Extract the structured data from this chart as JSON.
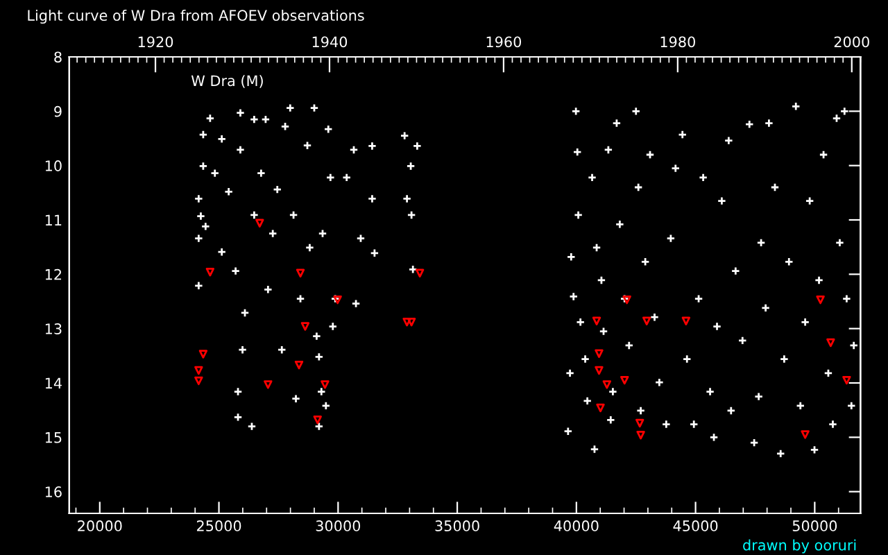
{
  "chart_data": {
    "type": "scatter",
    "title": "Light curve of W Dra from AFOEV observations",
    "annotations": [
      "W Dra (M)",
      "drawn by ooruri"
    ],
    "xlim": [
      18720,
      51920
    ],
    "xticks": [
      20000,
      25000,
      30000,
      35000,
      40000,
      45000,
      50000
    ],
    "x2lim": [
      1910.1,
      2001.0
    ],
    "x2ticks": [
      1920,
      1940,
      1960,
      1980,
      2000
    ],
    "ylim": [
      16.4,
      8
    ],
    "yticks": [
      8,
      9,
      10,
      11,
      12,
      13,
      14,
      15,
      16
    ],
    "grid": false,
    "legend": false,
    "series": [
      {
        "color": "#ffffff",
        "marker": "cross",
        "x": [
          24150,
          24150,
          24150,
          24240,
          24340,
          24340,
          24440,
          24630,
          24830,
          25120,
          25120,
          25410,
          25700,
          25800,
          25800,
          25900,
          25900,
          25990,
          26090,
          26380,
          26480,
          26480,
          26770,
          26960,
          27060,
          27260,
          27450,
          27640,
          27780,
          27990,
          28130,
          28230,
          28420,
          28710,
          28810,
          29000,
          29100,
          29200,
          29300,
          29350,
          29490,
          29200,
          29590,
          29680,
          29780,
          29880,
          30360,
          30660,
          30750,
          30950,
          31430,
          31430,
          31530,
          32790,
          32890,
          33050,
          33080,
          33140,
          33320,
          39650,
          39730,
          39780,
          39880,
          39980,
          40040,
          40080,
          40170,
          40370,
          40460,
          40660,
          40760,
          40850,
          41050,
          41140,
          41340,
          41440,
          41530,
          41690,
          41820,
          42020,
          42210,
          42500,
          42600,
          42700,
          42890,
          43090,
          43280,
          43480,
          43770,
          43960,
          44160,
          44450,
          44640,
          44930,
          45130,
          45320,
          45610,
          45770,
          45900,
          46100,
          46390,
          46490,
          46680,
          46970,
          47260,
          47460,
          47650,
          47750,
          47940,
          48080,
          48330,
          48570,
          48720,
          48920,
          49210,
          49400,
          49600,
          49790,
          49990,
          50180,
          50370,
          50570,
          50760,
          50920,
          51050,
          51250,
          51340,
          51540,
          51640
        ],
        "values": [
          10.61,
          12.21,
          11.34,
          10.93,
          9.43,
          10.01,
          11.12,
          9.13,
          10.14,
          9.51,
          11.59,
          10.48,
          11.94,
          14.16,
          14.63,
          9.03,
          9.71,
          13.39,
          12.71,
          14.8,
          9.15,
          10.91,
          10.14,
          9.15,
          12.28,
          11.25,
          10.44,
          13.39,
          9.28,
          8.94,
          10.91,
          14.29,
          12.45,
          9.63,
          11.51,
          8.94,
          13.14,
          13.52,
          14.16,
          11.25,
          14.42,
          14.8,
          9.33,
          10.22,
          12.96,
          12.45,
          10.22,
          9.71,
          12.54,
          11.34,
          9.64,
          10.61,
          11.61,
          9.45,
          10.61,
          10.01,
          10.91,
          11.91,
          9.64,
          14.89,
          13.82,
          11.68,
          12.41,
          9.0,
          9.75,
          10.91,
          12.88,
          13.56,
          14.33,
          10.22,
          15.22,
          11.51,
          12.11,
          13.05,
          9.71,
          14.68,
          14.16,
          9.22,
          11.08,
          12.45,
          13.31,
          9.0,
          10.4,
          14.51,
          11.77,
          9.8,
          12.79,
          13.99,
          14.76,
          11.34,
          10.05,
          9.43,
          13.56,
          14.76,
          12.45,
          10.22,
          14.16,
          15.0,
          12.96,
          10.65,
          9.54,
          14.51,
          11.94,
          13.22,
          9.24,
          15.1,
          14.25,
          11.42,
          12.62,
          9.22,
          10.4,
          15.3,
          13.56,
          11.77,
          8.91,
          14.42,
          12.88,
          10.65,
          15.23,
          12.11,
          9.8,
          13.82,
          14.76,
          9.13,
          11.42,
          9.0,
          12.45,
          14.42,
          13.31
        ]
      },
      {
        "color": "#ff0000",
        "marker": "triangle",
        "x": [
          24340,
          24150,
          24150,
          24630,
          26710,
          27060,
          28360,
          28420,
          28620,
          29140,
          29450,
          29980,
          32890,
          33080,
          33430,
          42120,
          40850,
          42950,
          44600,
          40950,
          40950,
          41280,
          42020,
          41010,
          42660,
          42700,
          50240,
          50670,
          51340,
          49600
        ],
        "values": [
          13.47,
          13.77,
          13.96,
          11.96,
          11.06,
          14.03,
          13.67,
          11.98,
          12.96,
          14.68,
          14.03,
          12.47,
          12.88,
          12.88,
          11.98,
          12.47,
          12.86,
          12.86,
          12.86,
          13.46,
          13.77,
          14.03,
          13.95,
          14.46,
          14.74,
          14.96,
          12.47,
          13.26,
          13.95,
          14.95
        ]
      }
    ]
  }
}
